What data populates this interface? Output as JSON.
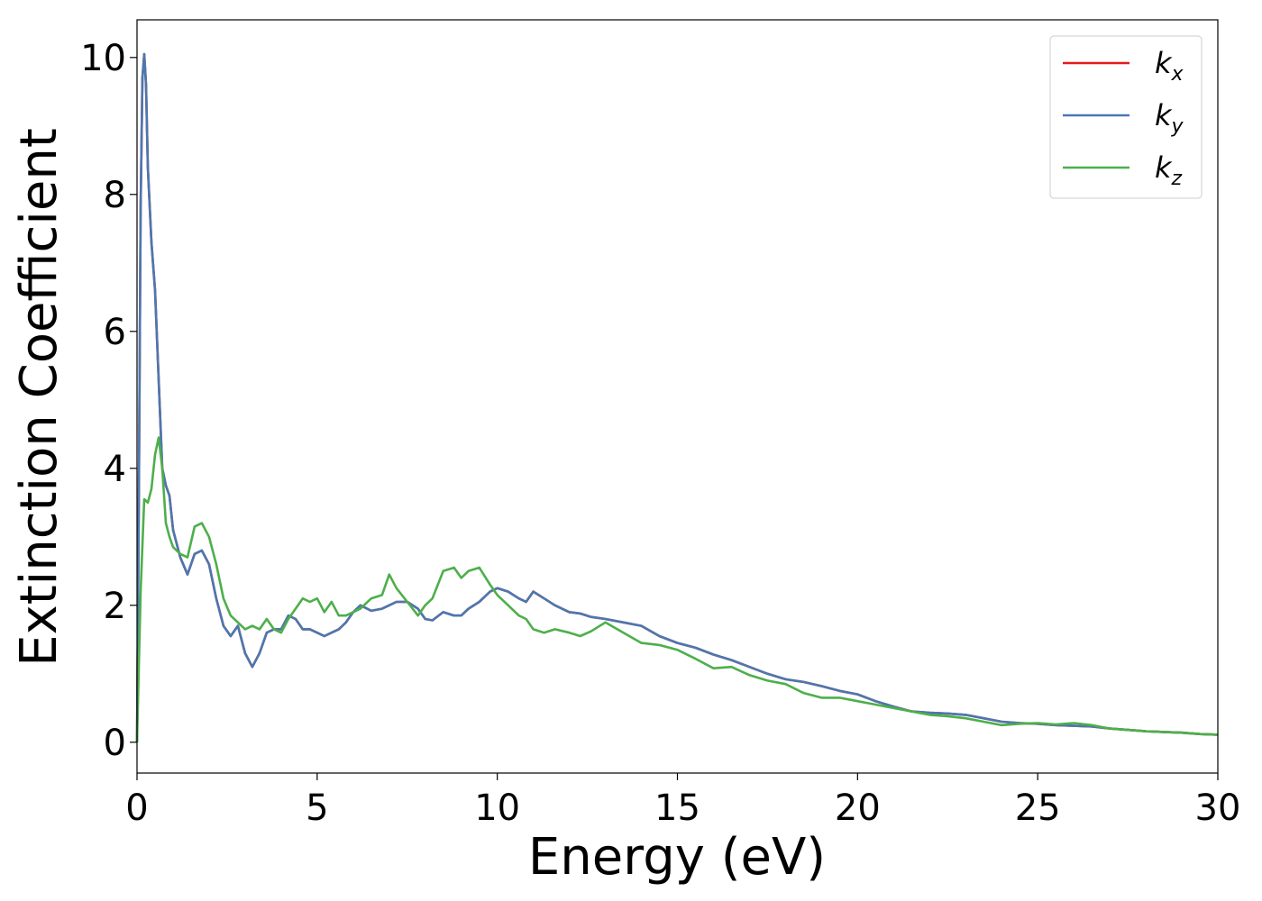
{
  "chart_data": {
    "type": "line",
    "xlabel": "Energy (eV)",
    "ylabel": "Extinction Coefficient",
    "xlim": [
      0,
      30
    ],
    "ylim": [
      -0.45,
      10.55
    ],
    "xticks": [
      0,
      5,
      10,
      15,
      20,
      25,
      30
    ],
    "yticks": [
      0,
      2,
      4,
      6,
      8,
      10
    ],
    "grid": false,
    "legend_position": "top-right",
    "series": [
      {
        "name": "kx",
        "label_main": "k",
        "label_sub": "x",
        "color": "#e41a1c",
        "x": [
          0,
          0.05,
          0.1,
          0.15,
          0.2,
          0.25,
          0.3,
          0.4,
          0.5,
          0.6,
          0.7,
          0.8,
          0.9,
          1.0,
          1.2,
          1.4,
          1.6,
          1.8,
          2.0,
          2.2,
          2.4,
          2.6,
          2.8,
          3.0,
          3.2,
          3.4,
          3.6,
          3.8,
          4.0,
          4.2,
          4.4,
          4.6,
          4.8,
          5.0,
          5.2,
          5.4,
          5.6,
          5.8,
          6.0,
          6.2,
          6.5,
          6.8,
          7.0,
          7.2,
          7.5,
          7.8,
          8.0,
          8.2,
          8.5,
          8.8,
          9.0,
          9.2,
          9.5,
          9.8,
          10.0,
          10.3,
          10.6,
          10.8,
          11.0,
          11.3,
          11.6,
          12.0,
          12.3,
          12.6,
          13.0,
          13.5,
          14.0,
          14.5,
          15.0,
          15.5,
          16.0,
          16.5,
          17.0,
          17.5,
          18.0,
          18.5,
          19.0,
          19.5,
          20.0,
          20.5,
          21.0,
          21.5,
          22.0,
          22.5,
          23.0,
          23.5,
          24.0,
          24.5,
          25.0,
          25.5,
          26.0,
          26.5,
          27.0,
          27.5,
          28.0,
          28.5,
          29.0,
          29.5,
          30.0
        ],
        "values": [
          0,
          3.5,
          7.8,
          9.7,
          10.05,
          9.6,
          8.4,
          7.3,
          6.6,
          5.3,
          4.0,
          3.75,
          3.6,
          3.1,
          2.7,
          2.45,
          2.75,
          2.8,
          2.6,
          2.1,
          1.7,
          1.55,
          1.7,
          1.3,
          1.1,
          1.3,
          1.6,
          1.65,
          1.65,
          1.85,
          1.8,
          1.65,
          1.65,
          1.6,
          1.55,
          1.6,
          1.65,
          1.75,
          1.9,
          2.0,
          1.92,
          1.95,
          2.0,
          2.05,
          2.05,
          1.95,
          1.8,
          1.78,
          1.9,
          1.85,
          1.85,
          1.95,
          2.05,
          2.2,
          2.25,
          2.2,
          2.1,
          2.05,
          2.2,
          2.1,
          2.0,
          1.9,
          1.88,
          1.83,
          1.8,
          1.75,
          1.7,
          1.55,
          1.45,
          1.38,
          1.28,
          1.2,
          1.1,
          1.0,
          0.92,
          0.88,
          0.82,
          0.75,
          0.7,
          0.6,
          0.52,
          0.45,
          0.43,
          0.42,
          0.4,
          0.35,
          0.3,
          0.28,
          0.27,
          0.25,
          0.24,
          0.23,
          0.2,
          0.18,
          0.16,
          0.15,
          0.14,
          0.12,
          0.11
        ]
      },
      {
        "name": "ky",
        "label_main": "k",
        "label_sub": "y",
        "color": "#4a78b0",
        "x": [
          0,
          0.05,
          0.1,
          0.15,
          0.2,
          0.25,
          0.3,
          0.4,
          0.5,
          0.6,
          0.7,
          0.8,
          0.9,
          1.0,
          1.2,
          1.4,
          1.6,
          1.8,
          2.0,
          2.2,
          2.4,
          2.6,
          2.8,
          3.0,
          3.2,
          3.4,
          3.6,
          3.8,
          4.0,
          4.2,
          4.4,
          4.6,
          4.8,
          5.0,
          5.2,
          5.4,
          5.6,
          5.8,
          6.0,
          6.2,
          6.5,
          6.8,
          7.0,
          7.2,
          7.5,
          7.8,
          8.0,
          8.2,
          8.5,
          8.8,
          9.0,
          9.2,
          9.5,
          9.8,
          10.0,
          10.3,
          10.6,
          10.8,
          11.0,
          11.3,
          11.6,
          12.0,
          12.3,
          12.6,
          13.0,
          13.5,
          14.0,
          14.5,
          15.0,
          15.5,
          16.0,
          16.5,
          17.0,
          17.5,
          18.0,
          18.5,
          19.0,
          19.5,
          20.0,
          20.5,
          21.0,
          21.5,
          22.0,
          22.5,
          23.0,
          23.5,
          24.0,
          24.5,
          25.0,
          25.5,
          26.0,
          26.5,
          27.0,
          27.5,
          28.0,
          28.5,
          29.0,
          29.5,
          30.0
        ],
        "values": [
          0,
          3.5,
          7.8,
          9.7,
          10.05,
          9.6,
          8.4,
          7.3,
          6.6,
          5.3,
          4.0,
          3.75,
          3.6,
          3.1,
          2.7,
          2.45,
          2.75,
          2.8,
          2.6,
          2.1,
          1.7,
          1.55,
          1.7,
          1.3,
          1.1,
          1.3,
          1.6,
          1.65,
          1.65,
          1.85,
          1.8,
          1.65,
          1.65,
          1.6,
          1.55,
          1.6,
          1.65,
          1.75,
          1.9,
          2.0,
          1.92,
          1.95,
          2.0,
          2.05,
          2.05,
          1.95,
          1.8,
          1.78,
          1.9,
          1.85,
          1.85,
          1.95,
          2.05,
          2.2,
          2.25,
          2.2,
          2.1,
          2.05,
          2.2,
          2.1,
          2.0,
          1.9,
          1.88,
          1.83,
          1.8,
          1.75,
          1.7,
          1.55,
          1.45,
          1.38,
          1.28,
          1.2,
          1.1,
          1.0,
          0.92,
          0.88,
          0.82,
          0.75,
          0.7,
          0.6,
          0.52,
          0.45,
          0.43,
          0.42,
          0.4,
          0.35,
          0.3,
          0.28,
          0.27,
          0.25,
          0.24,
          0.23,
          0.2,
          0.18,
          0.16,
          0.15,
          0.14,
          0.12,
          0.11
        ]
      },
      {
        "name": "kz",
        "label_main": "k",
        "label_sub": "z",
        "color": "#4daf4a",
        "x": [
          0,
          0.1,
          0.2,
          0.3,
          0.4,
          0.5,
          0.6,
          0.7,
          0.8,
          0.9,
          1.0,
          1.2,
          1.4,
          1.6,
          1.8,
          2.0,
          2.2,
          2.4,
          2.6,
          2.8,
          3.0,
          3.2,
          3.4,
          3.6,
          3.8,
          4.0,
          4.2,
          4.4,
          4.6,
          4.8,
          5.0,
          5.2,
          5.4,
          5.6,
          5.8,
          6.0,
          6.2,
          6.5,
          6.8,
          7.0,
          7.2,
          7.5,
          7.8,
          8.0,
          8.2,
          8.5,
          8.8,
          9.0,
          9.2,
          9.5,
          9.8,
          10.0,
          10.3,
          10.6,
          10.8,
          11.0,
          11.3,
          11.6,
          12.0,
          12.3,
          12.6,
          13.0,
          13.5,
          14.0,
          14.5,
          15.0,
          15.5,
          16.0,
          16.5,
          17.0,
          17.5,
          18.0,
          18.5,
          19.0,
          19.5,
          20.0,
          20.5,
          21.0,
          21.5,
          22.0,
          22.5,
          23.0,
          23.5,
          24.0,
          24.5,
          25.0,
          25.5,
          26.0,
          26.5,
          27.0,
          27.5,
          28.0,
          28.5,
          29.0,
          29.5,
          30.0
        ],
        "values": [
          0,
          2.2,
          3.55,
          3.5,
          3.7,
          4.2,
          4.45,
          4.0,
          3.2,
          3.0,
          2.85,
          2.75,
          2.7,
          3.15,
          3.2,
          3.0,
          2.6,
          2.1,
          1.85,
          1.75,
          1.65,
          1.7,
          1.65,
          1.8,
          1.65,
          1.6,
          1.8,
          1.95,
          2.1,
          2.05,
          2.1,
          1.9,
          2.05,
          1.85,
          1.85,
          1.9,
          1.95,
          2.1,
          2.15,
          2.45,
          2.25,
          2.05,
          1.85,
          2.0,
          2.1,
          2.5,
          2.55,
          2.4,
          2.5,
          2.55,
          2.3,
          2.15,
          2.0,
          1.85,
          1.8,
          1.65,
          1.6,
          1.65,
          1.6,
          1.55,
          1.62,
          1.75,
          1.6,
          1.45,
          1.42,
          1.35,
          1.22,
          1.08,
          1.1,
          0.98,
          0.9,
          0.85,
          0.72,
          0.65,
          0.65,
          0.6,
          0.55,
          0.5,
          0.45,
          0.4,
          0.38,
          0.35,
          0.3,
          0.25,
          0.27,
          0.28,
          0.26,
          0.28,
          0.25,
          0.2,
          0.18,
          0.16,
          0.15,
          0.14,
          0.12,
          0.11
        ]
      }
    ]
  }
}
